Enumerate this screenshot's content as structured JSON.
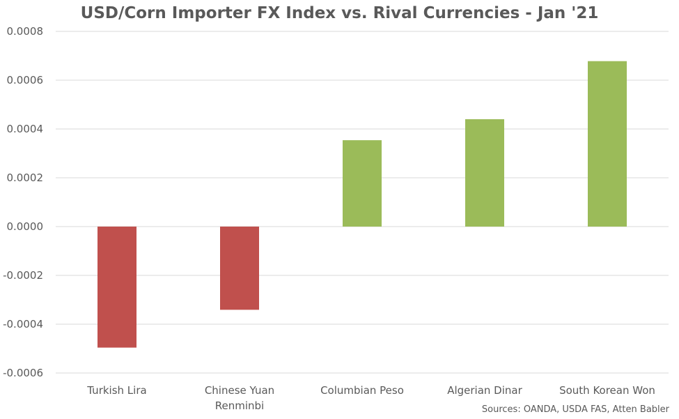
{
  "chart_data": {
    "type": "bar",
    "title": "USD/Corn Importer FX Index vs. Rival Currencies - Jan '21",
    "source": "Sources: OANDA, USDA FAS, Atten Babler",
    "categories": [
      "Turkish Lira",
      "Chinese Yuan Renminbi",
      "Columbian Peso",
      "Algerian Dinar",
      "South Korean Won"
    ],
    "category_label_lines": [
      [
        "Turkish Lira"
      ],
      [
        "Chinese Yuan",
        "Renminbi"
      ],
      [
        "Columbian Peso"
      ],
      [
        "Algerian Dinar"
      ],
      [
        "South Korean Won"
      ]
    ],
    "values": [
      -0.000496,
      -0.000341,
      0.000354,
      0.00044,
      0.000678
    ],
    "ylim": [
      -0.0006,
      0.0008
    ],
    "yticks": [
      0.0008,
      0.0006,
      0.0004,
      0.0002,
      0.0,
      -0.0002,
      -0.0004,
      -0.0006
    ],
    "ytick_labels": [
      "0.0008",
      "0.0006",
      "0.0004",
      "0.0002",
      "0.0000",
      "-0.0002",
      "-0.0004",
      "-0.0006"
    ],
    "xlabel": "",
    "ylabel": "",
    "grid": true,
    "legend": "none",
    "colors": {
      "negative": "#c0504d",
      "positive": "#9bbb59"
    }
  }
}
